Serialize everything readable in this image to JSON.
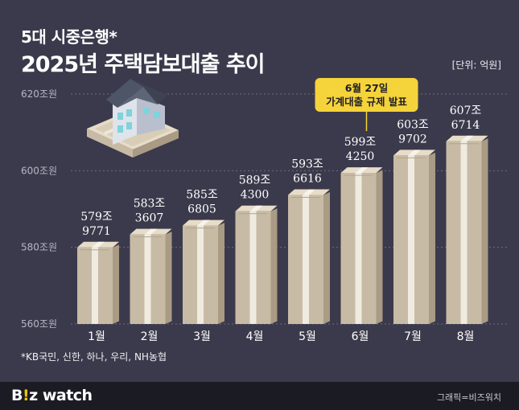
{
  "header": {
    "subtitle": "5대 시중은행*",
    "title": "2025년 주택담보대출 추이",
    "unit": "[단위: 억원]"
  },
  "annotation": {
    "line1": "6월 27일",
    "line2": "가계대출 규제 발표",
    "fill": "#f5d33a",
    "target_category": "6월"
  },
  "footnote": "*KB국민, 신한, 하나, 우리, NH농협",
  "footer": {
    "logo_b": "B",
    "logo_bang": "!",
    "logo_rest": "z watch",
    "credit": "그래픽=비즈워치"
  },
  "colors": {
    "background": "#3b3a4c",
    "bar_front": "#c8bba5",
    "bar_side": "#a99b84",
    "bar_top": "#e6dcc8",
    "band": "#f7f3ea",
    "grid": "#6d6c7e"
  },
  "chart_data": {
    "type": "bar",
    "categories": [
      "1월",
      "2월",
      "3월",
      "4월",
      "5월",
      "6월",
      "7월",
      "8월"
    ],
    "values": [
      5799771,
      5833607,
      5856805,
      5894300,
      5936616,
      5994250,
      6039702,
      6076714
    ],
    "value_labels": [
      [
        "579조",
        "9771"
      ],
      [
        "583조",
        "3607"
      ],
      [
        "585조",
        "6805"
      ],
      [
        "589조",
        "4300"
      ],
      [
        "593조",
        "6616"
      ],
      [
        "599조",
        "4250"
      ],
      [
        "603조",
        "9702"
      ],
      [
        "607조",
        "6714"
      ]
    ],
    "ylim": [
      5600000,
      6200000
    ],
    "yticks": [
      {
        "value": 5600000,
        "label": "560조원"
      },
      {
        "value": 5800000,
        "label": "580조원"
      },
      {
        "value": 6000000,
        "label": "600조원"
      },
      {
        "value": 6200000,
        "label": "620조원"
      }
    ],
    "grid": true
  }
}
